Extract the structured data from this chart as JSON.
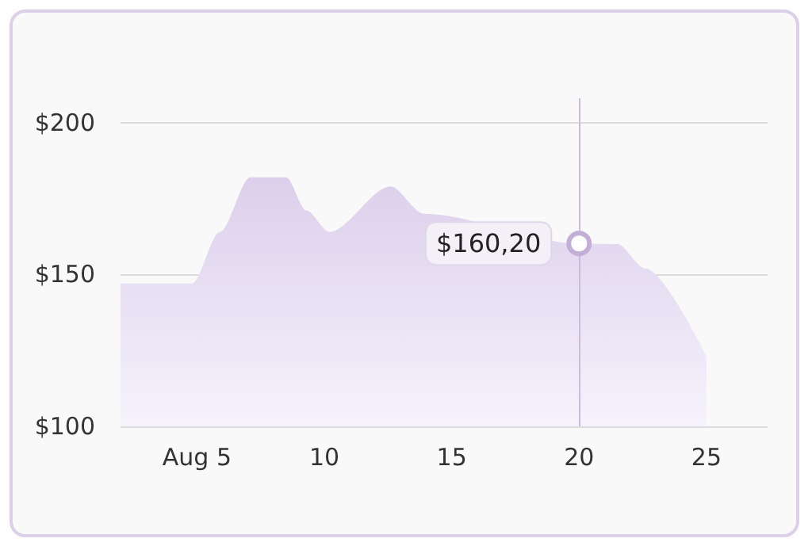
{
  "chart_data": {
    "type": "area",
    "x": [
      2,
      4.8,
      5.9,
      7.1,
      8.5,
      9.3,
      10.2,
      12.6,
      13.9,
      20,
      21.5,
      22.6,
      25
    ],
    "series": [
      {
        "color": "#dccfeb",
        "values": [
          147,
          147,
          164,
          182,
          182,
          171,
          164,
          179,
          170,
          160.2,
          160,
          152,
          123
        ]
      }
    ],
    "xlim": [
      2,
      27.4
    ],
    "ylim": [
      100,
      208
    ],
    "xticks": [
      {
        "value": 5,
        "label": "Aug 5"
      },
      10,
      15,
      20,
      25
    ],
    "yticks": [
      {
        "value": 100,
        "label": "$100"
      },
      {
        "value": 150,
        "label": "$150"
      },
      {
        "value": 200,
        "label": "$200"
      }
    ],
    "grid": "y",
    "ref_lines": [
      {
        "axis": "x",
        "value": 20,
        "color": "#cdbbdf"
      }
    ],
    "annotations": [
      {
        "text": "$160,20",
        "x": 20,
        "y": 160.2
      }
    ]
  }
}
